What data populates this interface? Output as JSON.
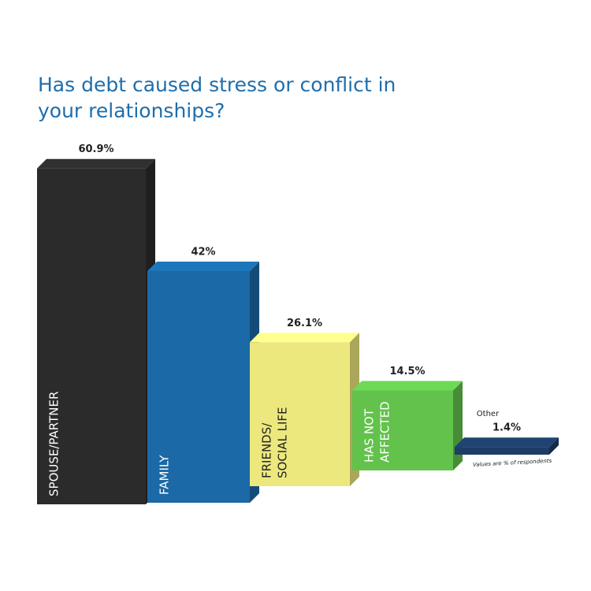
{
  "chart_data": {
    "type": "bar3d",
    "title": [
      "Has debt caused stress or conflict in",
      "your relationships?"
    ],
    "categories": [
      [
        "SPOUSE/PARTNER"
      ],
      [
        "FAMILY"
      ],
      [
        "FRIENDS/",
        "SOCIAL LIFE"
      ],
      [
        "HAS NOT",
        "AFFECTED"
      ],
      [
        "Other"
      ]
    ],
    "values": [
      60.9,
      42,
      26.1,
      14.5,
      1.4
    ],
    "value_labels": [
      "60.9%",
      "42%",
      "26.1%",
      "14.5%",
      "1.4%"
    ],
    "colors": [
      "#2b2b2b",
      "#1b69a6",
      "#ece87e",
      "#62c24b",
      "#1d3c66"
    ],
    "note": "Values are % of respondents"
  }
}
